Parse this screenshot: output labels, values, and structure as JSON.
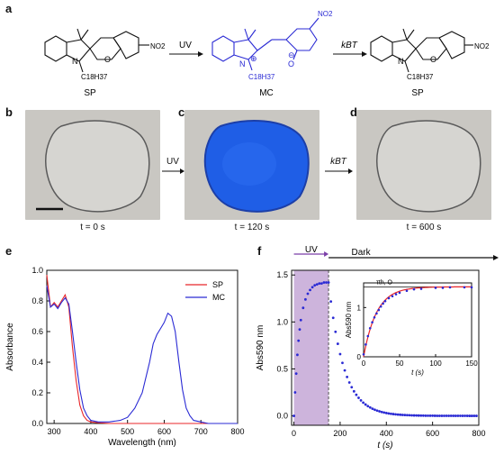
{
  "panels": {
    "a": "a",
    "b": "b",
    "c": "c",
    "d": "d",
    "e": "e",
    "f": "f"
  },
  "scheme": {
    "sp_left": "SP",
    "mc": "MC",
    "sp_right": "SP",
    "arrow1": "UV",
    "arrow2": "kBT",
    "alkyl": "C18H37",
    "nitro": "NO2",
    "oxygen": "O",
    "nitrogen": "N"
  },
  "photos": {
    "arrow1": "UV",
    "arrow2": "kBT",
    "b_time": "t = 0 s",
    "c_time": "t = 120 s",
    "d_time": "t = 600 s",
    "blue_color": "#1f5ee6"
  },
  "chart_data": [
    {
      "id": "e",
      "type": "line",
      "xlabel": "Wavelength (nm)",
      "ylabel": "Absorbance",
      "xlim": [
        280,
        800
      ],
      "ylim": [
        0,
        1.0
      ],
      "xticks": [
        300,
        400,
        500,
        600,
        700,
        800
      ],
      "yticks": [
        0.0,
        0.2,
        0.4,
        0.6,
        0.8,
        1.0
      ],
      "legend_position": "top-right",
      "series": [
        {
          "name": "SP",
          "color": "#e8262a",
          "x": [
            280,
            290,
            300,
            310,
            320,
            330,
            340,
            350,
            360,
            370,
            380,
            390,
            400,
            420,
            450,
            500,
            550,
            600,
            650,
            700,
            750,
            800
          ],
          "y": [
            0.97,
            0.76,
            0.79,
            0.76,
            0.8,
            0.84,
            0.76,
            0.5,
            0.28,
            0.12,
            0.05,
            0.02,
            0.01,
            0.005,
            0.0,
            0.0,
            0.0,
            0.0,
            0.0,
            0.0,
            0.0,
            0.0
          ]
        },
        {
          "name": "MC",
          "color": "#2a2ad4",
          "x": [
            280,
            290,
            300,
            310,
            320,
            330,
            340,
            350,
            360,
            370,
            380,
            390,
            400,
            420,
            450,
            480,
            500,
            520,
            540,
            560,
            570,
            580,
            590,
            600,
            610,
            620,
            630,
            640,
            650,
            660,
            670,
            680,
            700,
            720,
            750,
            800
          ],
          "y": [
            0.9,
            0.76,
            0.78,
            0.75,
            0.79,
            0.82,
            0.78,
            0.6,
            0.4,
            0.22,
            0.1,
            0.05,
            0.02,
            0.01,
            0.01,
            0.02,
            0.04,
            0.1,
            0.2,
            0.4,
            0.52,
            0.58,
            0.62,
            0.66,
            0.72,
            0.7,
            0.6,
            0.4,
            0.22,
            0.1,
            0.05,
            0.02,
            0.01,
            0.0,
            0.0,
            0.0
          ]
        }
      ]
    },
    {
      "id": "f",
      "type": "scatter",
      "xlabel": "t (s)",
      "ylabel": "Abs590 nm",
      "xlim": [
        -10,
        800
      ],
      "ylim": [
        -0.1,
        1.55
      ],
      "xticks": [
        0,
        200,
        400,
        600,
        800
      ],
      "yticks": [
        0.0,
        0.5,
        1.0,
        1.5
      ],
      "uv_region": [
        0,
        150
      ],
      "region_labels": {
        "uv": "UV",
        "dark": "Dark"
      },
      "point_color": "#2a2ad4",
      "shade_color": "#cdb4dc",
      "uv_phase": {
        "x": [
          0,
          5,
          10,
          15,
          20,
          25,
          30,
          40,
          50,
          60,
          70,
          80,
          90,
          100,
          110,
          120,
          130,
          140,
          150
        ],
        "y": [
          0.0,
          0.25,
          0.45,
          0.65,
          0.8,
          0.92,
          1.02,
          1.15,
          1.24,
          1.3,
          1.34,
          1.37,
          1.39,
          1.4,
          1.41,
          1.41,
          1.42,
          1.42,
          1.42
        ]
      },
      "dark_decay": {
        "start": 150,
        "y0": 1.42,
        "tau": 65,
        "step": 10,
        "end": 790
      },
      "inset": {
        "xlabel": "t (s)",
        "ylabel": "Abs590 nm",
        "annotation": "τth, O",
        "xlim": [
          0,
          150
        ],
        "ylim": [
          0,
          1.5
        ],
        "xticks": [
          0,
          50,
          100,
          150
        ],
        "yticks": [
          0,
          1
        ],
        "fit_color": "#e8262a",
        "x": [
          0,
          3,
          6,
          9,
          12,
          15,
          18,
          21,
          24,
          27,
          30,
          35,
          40,
          45,
          50,
          60,
          70,
          80,
          100,
          110,
          120,
          140,
          150
        ],
        "y": [
          0.05,
          0.25,
          0.42,
          0.58,
          0.7,
          0.8,
          0.88,
          0.95,
          1.02,
          1.08,
          1.13,
          1.19,
          1.23,
          1.27,
          1.3,
          1.34,
          1.37,
          1.38,
          1.4,
          1.4,
          1.41,
          1.41,
          1.41
        ],
        "tau": 18,
        "ymax": 1.42
      }
    }
  ]
}
